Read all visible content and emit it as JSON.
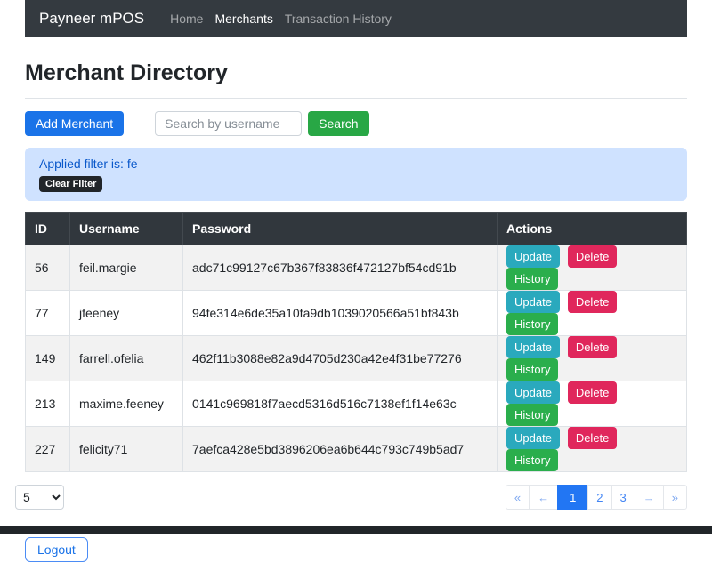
{
  "navbar": {
    "brand": "Payneer mPOS",
    "links": [
      {
        "label": "Home",
        "active": false
      },
      {
        "label": "Merchants",
        "active": true
      },
      {
        "label": "Transaction History",
        "active": false
      }
    ]
  },
  "page": {
    "title": "Merchant Directory"
  },
  "toolbar": {
    "add_button": "Add Merchant",
    "search_placeholder": "Search by username",
    "search_value": "",
    "search_button": "Search"
  },
  "filter_alert": {
    "text": "Applied filter is: fe",
    "clear_button": "Clear Filter"
  },
  "table": {
    "headers": [
      "ID",
      "Username",
      "Password",
      "Actions"
    ],
    "actions": [
      "Update",
      "Delete",
      "History"
    ],
    "rows": [
      {
        "id": "56",
        "username": "feil.margie",
        "password": "adc71c99127c67b367f83836f472127bf54cd91b"
      },
      {
        "id": "77",
        "username": "jfeeney",
        "password": "94fe314e6de35a10fa9db1039020566a51bf843b"
      },
      {
        "id": "149",
        "username": "farrell.ofelia",
        "password": "462f11b3088e82a9d4705d230a42e4f31be77276"
      },
      {
        "id": "213",
        "username": "maxime.feeney",
        "password": "0141c969818f7aecd5316d516c7138ef1f14e63c"
      },
      {
        "id": "227",
        "username": "felicity71",
        "password": "7aefca428e5bd3896206ea6b644c793c749b5ad7"
      }
    ]
  },
  "pagination": {
    "page_size": "5",
    "items": [
      {
        "label": "«"
      },
      {
        "label": "←"
      },
      {
        "label": "1"
      },
      {
        "label": "2"
      },
      {
        "label": "3"
      },
      {
        "label": "→"
      },
      {
        "label": "»"
      }
    ]
  },
  "logout_button": "Logout",
  "colors": {
    "navbar_bg": "#343a40",
    "table_header_bg": "#31373d",
    "primary": "#1a73e8",
    "success": "#28a745",
    "update_button": "#2aa9bd",
    "delete_button": "#e0275c",
    "history_button": "#2aae4c",
    "alert_bg": "#cfe2ff",
    "alert_text": "#0a58ca",
    "pagination_active": "#2276f3",
    "footer_bar": "#212529"
  }
}
